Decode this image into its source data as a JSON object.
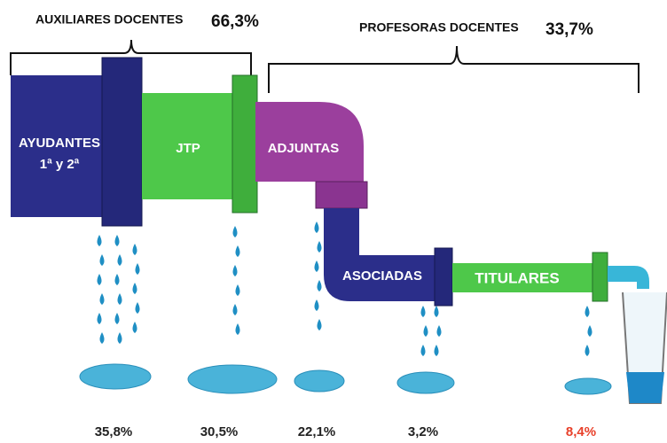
{
  "groups": [
    {
      "label": "AUXILIARES DOCENTES",
      "percent": "66,3%"
    },
    {
      "label": "PROFESORAS DOCENTES",
      "percent": "33,7%"
    }
  ],
  "segments": [
    {
      "label": [
        "AYUDANTES",
        "1ª y 2ª"
      ],
      "percent": "35,8%"
    },
    {
      "label": [
        "JTP"
      ],
      "percent": "30,5%"
    },
    {
      "label": [
        "ADJUNTAS"
      ],
      "percent": "22,1%"
    },
    {
      "label": [
        "ASOCIADAS"
      ],
      "percent": "3,2%"
    },
    {
      "label": [
        "TITULARES"
      ],
      "percent": "8,4%"
    }
  ]
}
